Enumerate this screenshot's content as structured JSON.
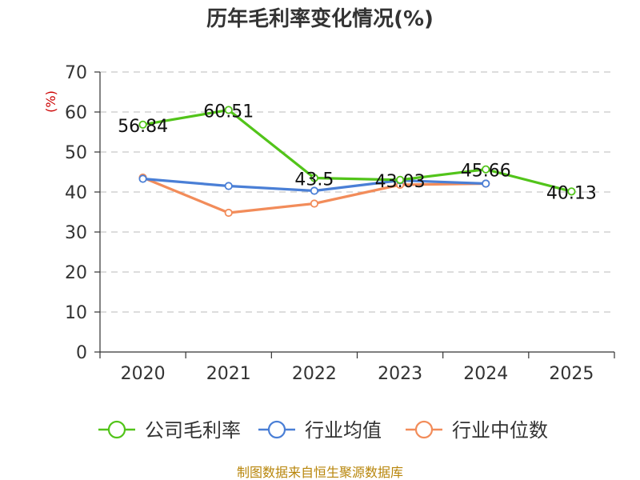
{
  "chart_data": {
    "type": "line",
    "title": "历年毛利率变化情况(%)",
    "ylabel": "(%)",
    "categories": [
      "2020",
      "2021",
      "2022",
      "2023",
      "2024",
      "2025"
    ],
    "ylim": [
      0,
      70
    ],
    "yticks": [
      "0",
      "10",
      "20",
      "30",
      "40",
      "50",
      "60",
      "70"
    ],
    "series": [
      {
        "name": "公司毛利率",
        "color": "#52c41a",
        "values": [
          56.84,
          60.51,
          43.5,
          43.03,
          45.66,
          40.13
        ],
        "labels": [
          "56.84",
          "60.51",
          "43.5",
          "43.03",
          "45.66",
          "40.13"
        ]
      },
      {
        "name": "行业均值",
        "color": "#4a7fd6",
        "values": [
          43.3,
          41.5,
          40.3,
          42.9,
          42.1,
          null
        ]
      },
      {
        "name": "行业中位数",
        "color": "#f28c5a",
        "values": [
          43.6,
          34.8,
          37.1,
          41.8,
          42.1,
          null
        ]
      }
    ],
    "legend_position": "bottom",
    "grid": true
  },
  "footer": {
    "source": "制图数据来自恒生聚源数据库"
  }
}
